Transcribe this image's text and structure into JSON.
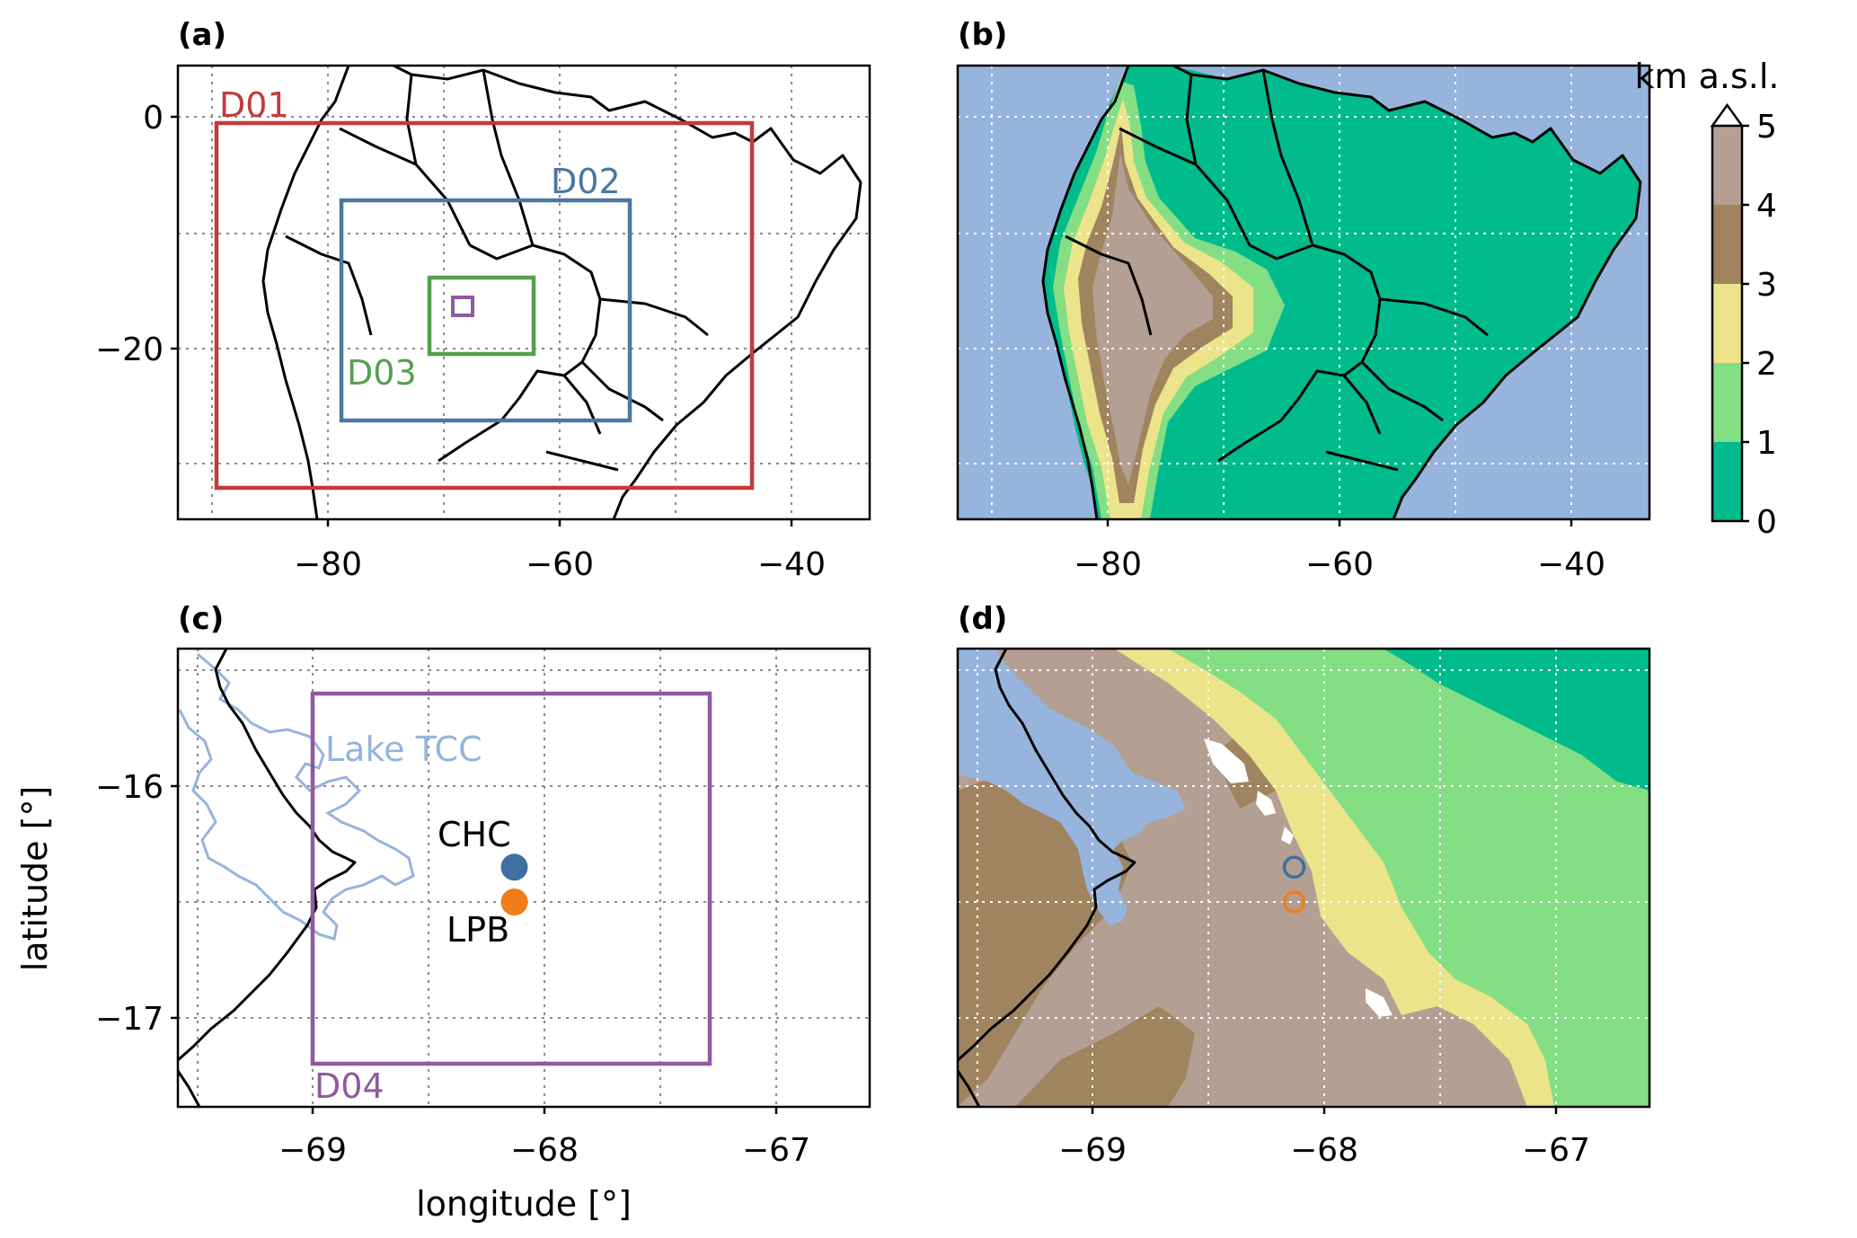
{
  "panels": {
    "a": {
      "title": "(a)",
      "domains": [
        {
          "name": "D01",
          "color": "#c23b3b"
        },
        {
          "name": "D02",
          "color": "#4a77a3"
        },
        {
          "name": "D03",
          "color": "#55a050"
        },
        {
          "name": "D04",
          "color": "#8e5aa0"
        }
      ]
    },
    "b": {
      "title": "(b)"
    },
    "c": {
      "title": "(c)",
      "lake_label": "Lake TCC",
      "domain_label": "D04",
      "stations": [
        {
          "name": "CHC",
          "lon": -68.13,
          "lat": -16.35,
          "color": "#3d6fa1"
        },
        {
          "name": "LPB",
          "lon": -68.13,
          "lat": -16.5,
          "color": "#f07d1a"
        }
      ]
    },
    "d": {
      "title": "(d)"
    }
  },
  "axes": {
    "xlabel": "longitude [°]",
    "ylabel": "latitude [°]",
    "large_xticks": [
      "−80",
      "−60",
      "−40"
    ],
    "large_yticks": [
      "0",
      "−20"
    ],
    "small_xticks": [
      "−69",
      "−68",
      "−67"
    ],
    "small_yticks": [
      "−16",
      "−17"
    ]
  },
  "colorbar": {
    "label": "km a.s.l.",
    "ticks": [
      "0",
      "1",
      "2",
      "3",
      "4",
      "5"
    ],
    "colors": [
      "#00bb8c",
      "#84de84",
      "#ece48a",
      "#a0835f",
      "#b49f93"
    ]
  },
  "colors": {
    "ocean": "#96b4dc",
    "lake": "#96b4dc",
    "snow": "#ffffff"
  }
}
